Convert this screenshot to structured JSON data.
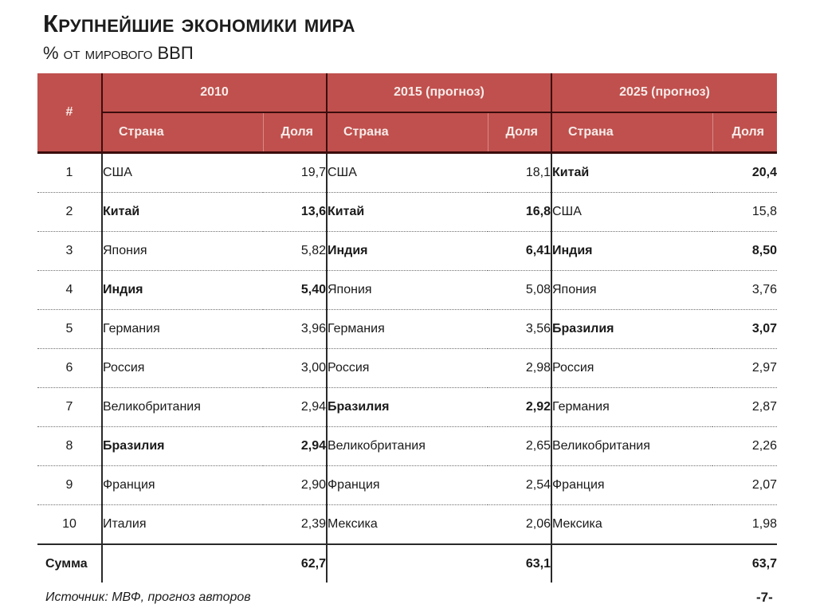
{
  "header": {
    "title": "Крупнейшие экономики мира",
    "subtitle": "% от мирового ВВП"
  },
  "table": {
    "rank_header": "#",
    "groups": [
      {
        "label": "2010",
        "country_header": "Страна",
        "share_header": "Доля"
      },
      {
        "label": "2015 (прогноз)",
        "country_header": "Страна",
        "share_header": "Доля"
      },
      {
        "label": "2025 (прогноз)",
        "country_header": "Страна",
        "share_header": "Доля"
      }
    ],
    "rows": [
      {
        "rank": "1",
        "cells": [
          {
            "country": "США",
            "share": "19,7",
            "bold": false
          },
          {
            "country": "США",
            "share": "18,1",
            "bold": false
          },
          {
            "country": "Китай",
            "share": "20,4",
            "bold": true
          }
        ]
      },
      {
        "rank": "2",
        "cells": [
          {
            "country": "Китай",
            "share": "13,6",
            "bold": true
          },
          {
            "country": "Китай",
            "share": "16,8",
            "bold": true
          },
          {
            "country": "США",
            "share": "15,8",
            "bold": false
          }
        ]
      },
      {
        "rank": "3",
        "cells": [
          {
            "country": "Япония",
            "share": "5,82",
            "bold": false
          },
          {
            "country": "Индия",
            "share": "6,41",
            "bold": true
          },
          {
            "country": "Индия",
            "share": "8,50",
            "bold": true
          }
        ]
      },
      {
        "rank": "4",
        "cells": [
          {
            "country": "Индия",
            "share": "5,40",
            "bold": true
          },
          {
            "country": "Япония",
            "share": "5,08",
            "bold": false
          },
          {
            "country": "Япония",
            "share": "3,76",
            "bold": false
          }
        ]
      },
      {
        "rank": "5",
        "cells": [
          {
            "country": "Германия",
            "share": "3,96",
            "bold": false
          },
          {
            "country": "Германия",
            "share": "3,56",
            "bold": false
          },
          {
            "country": "Бразилия",
            "share": "3,07",
            "bold": true
          }
        ]
      },
      {
        "rank": "6",
        "cells": [
          {
            "country": "Россия",
            "share": "3,00",
            "bold": false
          },
          {
            "country": "Россия",
            "share": "2,98",
            "bold": false
          },
          {
            "country": "Россия",
            "share": "2,97",
            "bold": false
          }
        ]
      },
      {
        "rank": "7",
        "cells": [
          {
            "country": "Великобритания",
            "share": "2,94",
            "bold": false
          },
          {
            "country": "Бразилия",
            "share": "2,92",
            "bold": true
          },
          {
            "country": "Германия",
            "share": "2,87",
            "bold": false
          }
        ]
      },
      {
        "rank": "8",
        "cells": [
          {
            "country": "Бразилия",
            "share": "2,94",
            "bold": true
          },
          {
            "country": "Великобритания",
            "share": "2,65",
            "bold": false
          },
          {
            "country": "Великобритания",
            "share": "2,26",
            "bold": false
          }
        ]
      },
      {
        "rank": "9",
        "cells": [
          {
            "country": "Франция",
            "share": "2,90",
            "bold": false
          },
          {
            "country": "Франция",
            "share": "2,54",
            "bold": false
          },
          {
            "country": "Франция",
            "share": "2,07",
            "bold": false
          }
        ]
      },
      {
        "rank": "10",
        "cells": [
          {
            "country": "Италия",
            "share": "2,39",
            "bold": false
          },
          {
            "country": "Мексика",
            "share": "2,06",
            "bold": false
          },
          {
            "country": "Мексика",
            "share": "1,98",
            "bold": false
          }
        ]
      }
    ],
    "sum": {
      "label": "Сумма",
      "values": [
        "62,7",
        "63,1",
        "63,7"
      ]
    }
  },
  "footer": {
    "source": "Источник: МВФ, прогноз авторов",
    "page_number": "-7-"
  },
  "colors": {
    "header_bg": "#C0504D",
    "header_text": "#F6ECEA",
    "header_lines": "#3A0D0C"
  }
}
